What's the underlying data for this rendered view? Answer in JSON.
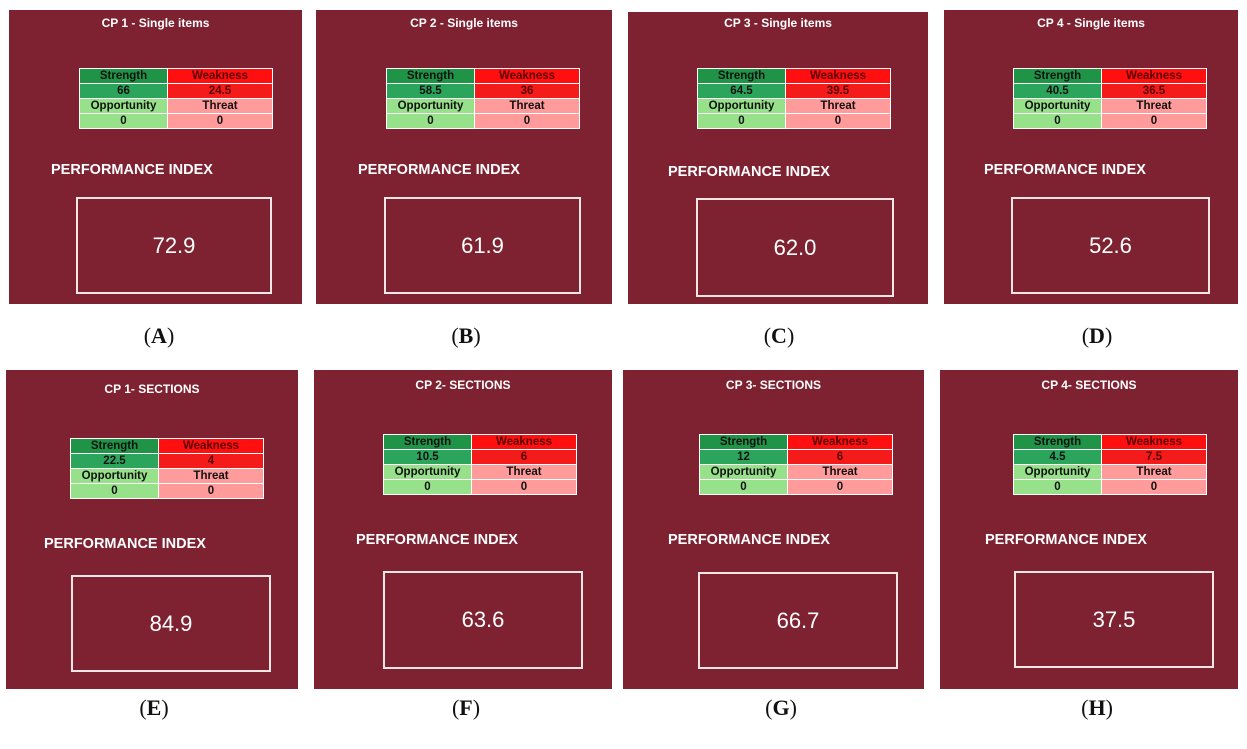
{
  "swot_labels": {
    "strength": "Strength",
    "weakness": "Weakness",
    "opportunity": "Opportunity",
    "threat": "Threat"
  },
  "performance_label": "PERFORMANCE INDEX",
  "panels": [
    {
      "title": "CP 1 - Single items",
      "strength": "66",
      "weakness": "24.5",
      "opportunity": "0",
      "threat": "0",
      "performance_index": "72.9",
      "caption_letter": "A"
    },
    {
      "title": "CP 2 - Single items",
      "strength": "58.5",
      "weakness": "36",
      "opportunity": "0",
      "threat": "0",
      "performance_index": "61.9",
      "caption_letter": "B"
    },
    {
      "title": "CP 3 - Single items",
      "strength": "64.5",
      "weakness": "39.5",
      "opportunity": "0",
      "threat": "0",
      "performance_index": "62.0",
      "caption_letter": "C"
    },
    {
      "title": "CP 4 - Single items",
      "strength": "40.5",
      "weakness": "36.5",
      "opportunity": "0",
      "threat": "0",
      "performance_index": "52.6",
      "caption_letter": "D"
    },
    {
      "title": "CP 1- SECTIONS",
      "strength": "22.5",
      "weakness": "4",
      "opportunity": "0",
      "threat": "0",
      "performance_index": "84.9",
      "caption_letter": "E"
    },
    {
      "title": "CP 2- SECTIONS",
      "strength": "10.5",
      "weakness": "6",
      "opportunity": "0",
      "threat": "0",
      "performance_index": "63.6",
      "caption_letter": "F"
    },
    {
      "title": "CP 3- SECTIONS",
      "strength": "12",
      "weakness": "6",
      "opportunity": "0",
      "threat": "0",
      "performance_index": "66.7",
      "caption_letter": "G"
    },
    {
      "title": "CP 4- SECTIONS",
      "strength": "4.5",
      "weakness": "7.5",
      "opportunity": "0",
      "threat": "0",
      "performance_index": "37.5",
      "caption_letter": "H"
    }
  ],
  "colors": {
    "panel_background": "#7e2232",
    "strength": "#1f9447",
    "weakness": "#ff0f0f",
    "opportunity": "#96e189",
    "threat": "#ff9b9b"
  }
}
